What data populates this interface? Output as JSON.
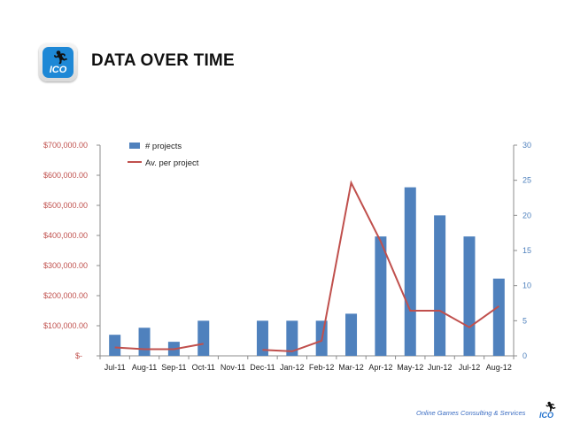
{
  "header": {
    "title": "DATA OVER TIME",
    "logo_text": "ICO"
  },
  "footer": {
    "text": "Online Games Consulting & Services",
    "logo_text": "ICO"
  },
  "colors": {
    "bars": "#4f81bd",
    "line": "#c0504d",
    "left_axis_text": "#c0504d",
    "right_axis_text": "#4f81bd"
  },
  "chart_data": {
    "type": "bar",
    "categories": [
      "Jul-11",
      "Aug-11",
      "Sep-11",
      "Oct-11",
      "Nov-11",
      "Dec-11",
      "Jan-12",
      "Feb-12",
      "Mar-12",
      "Apr-12",
      "May-12",
      "Jun-12",
      "Jul-12",
      "Aug-12"
    ],
    "series": [
      {
        "name": "# projects",
        "type": "bar",
        "axis": "right",
        "values": [
          3,
          4,
          2,
          5,
          0,
          5,
          5,
          5,
          6,
          17,
          24,
          20,
          17,
          11
        ]
      },
      {
        "name": "Av. per project",
        "type": "line",
        "axis": "left",
        "values": [
          28000,
          22000,
          22000,
          40000,
          null,
          20000,
          15000,
          50000,
          575000,
          380000,
          150000,
          150000,
          95000,
          165000
        ]
      }
    ],
    "left_axis": {
      "ticks": [
        "$-",
        "$100,000.00",
        "$200,000.00",
        "$300,000.00",
        "$400,000.00",
        "$500,000.00",
        "$600,000.00",
        "$700,000.00"
      ],
      "min": 0,
      "max": 700000
    },
    "right_axis": {
      "ticks": [
        "0",
        "5",
        "10",
        "15",
        "20",
        "25",
        "30"
      ],
      "min": 0,
      "max": 30
    },
    "legend_position": "top-left",
    "grid": false
  }
}
